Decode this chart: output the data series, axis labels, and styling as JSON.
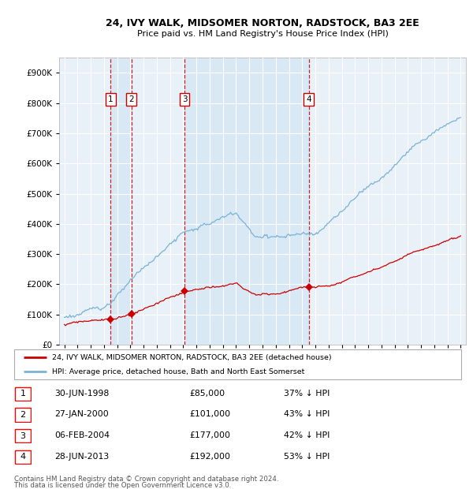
{
  "title1": "24, IVY WALK, MIDSOMER NORTON, RADSTOCK, BA3 2EE",
  "title2": "Price paid vs. HM Land Registry's House Price Index (HPI)",
  "legend_line1": "24, IVY WALK, MIDSOMER NORTON, RADSTOCK, BA3 2EE (detached house)",
  "legend_line2": "HPI: Average price, detached house, Bath and North East Somerset",
  "footer1": "Contains HM Land Registry data © Crown copyright and database right 2024.",
  "footer2": "This data is licensed under the Open Government Licence v3.0.",
  "transactions": [
    {
      "num": 1,
      "date": "30-JUN-1998",
      "price": 85000,
      "pct": "37% ↓ HPI",
      "year": 1998.5
    },
    {
      "num": 2,
      "date": "27-JAN-2000",
      "price": 101000,
      "pct": "43% ↓ HPI",
      "year": 2000.07
    },
    {
      "num": 3,
      "date": "06-FEB-2004",
      "price": 177000,
      "pct": "42% ↓ HPI",
      "year": 2004.1
    },
    {
      "num": 4,
      "date": "28-JUN-2013",
      "price": 192000,
      "pct": "53% ↓ HPI",
      "year": 2013.5
    }
  ],
  "hpi_color": "#7ab3d4",
  "price_color": "#cc0000",
  "vline_color": "#cc0000",
  "shade_color": "#d8e8f5",
  "bg_color": "#e8f0f8",
  "ylim": [
    0,
    950000
  ],
  "yticks": [
    0,
    100000,
    200000,
    300000,
    400000,
    500000,
    600000,
    700000,
    800000,
    900000
  ],
  "xlim_start": 1994.6,
  "xlim_end": 2025.4
}
